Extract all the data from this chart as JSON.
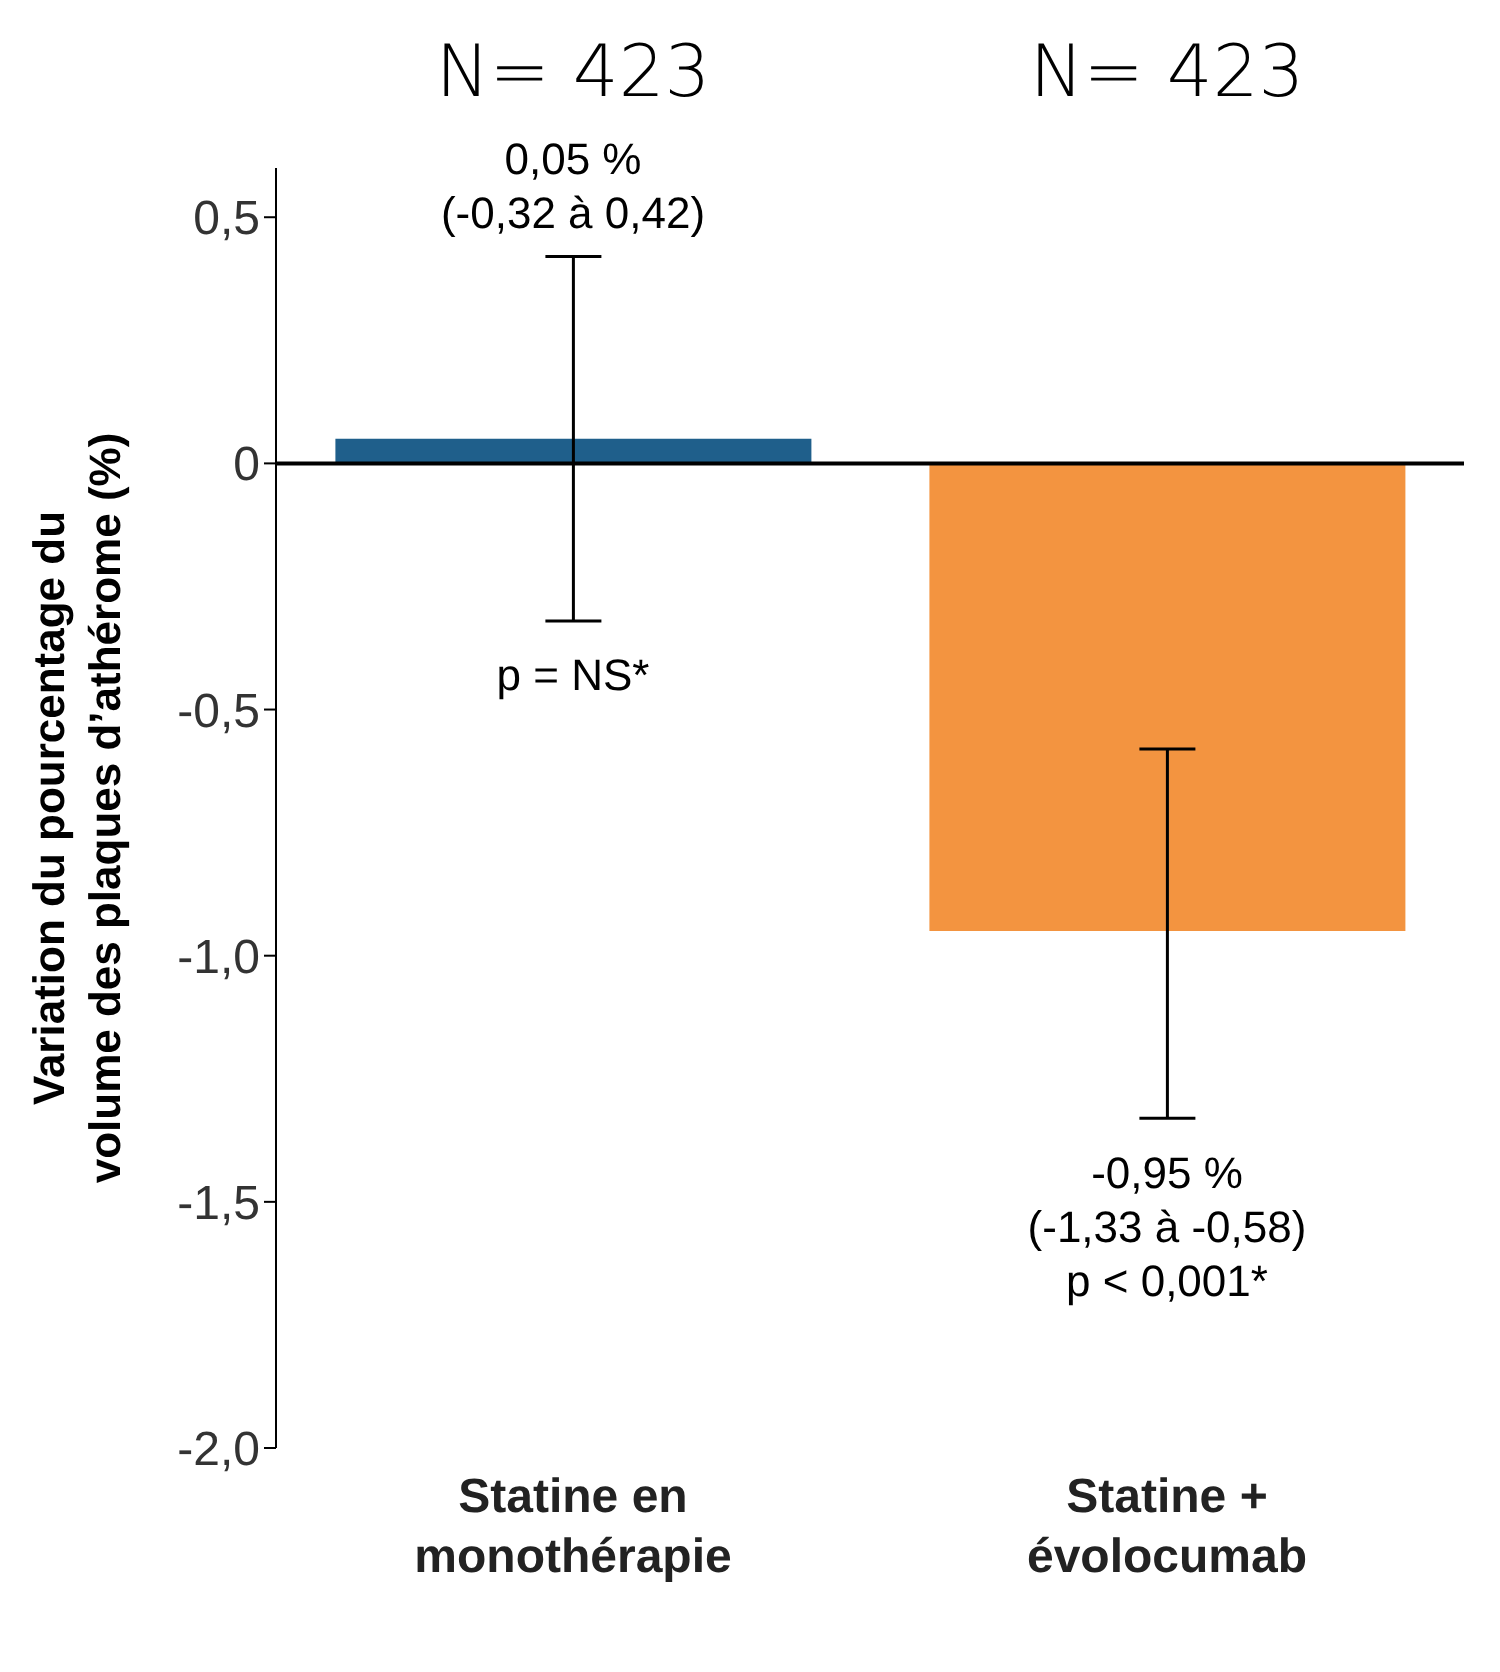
{
  "chart_data": {
    "type": "bar",
    "ylabel": "Variation du pourcentage du volume des plaques d’athérome (%)",
    "categories": [
      "Statine en monothérapie",
      "Statine + évolocumab"
    ],
    "values": [
      0.05,
      -0.95
    ],
    "colors": [
      "#1f5f8b",
      "#f39440"
    ],
    "errors": [
      [
        -0.32,
        0.42
      ],
      [
        -1.33,
        -0.58
      ]
    ],
    "ylim": [
      -2,
      0.6
    ],
    "yticks": [
      {
        "value": 0.5,
        "label": "0,5"
      },
      0,
      {
        "value": -0.5,
        "label": "-0,5"
      },
      {
        "value": -1,
        "label": "-1,0"
      },
      {
        "value": -1.5,
        "label": "-1,5"
      },
      {
        "value": -2,
        "label": "-2,0"
      }
    ],
    "ref_lines": [
      {
        "axis": "y",
        "value": 0,
        "color": "#000000"
      }
    ],
    "annotations": [
      "N= 423",
      "N= 423",
      "0,05 %\n(-0,32 à 0,42)",
      "p = NS*",
      "-0,95 %\n(-1,33 à -0,58)\np < 0,001*"
    ]
  }
}
